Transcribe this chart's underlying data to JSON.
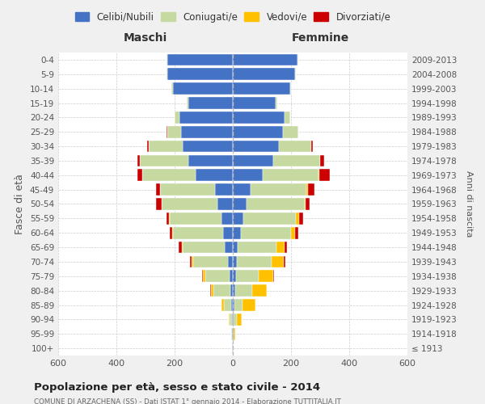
{
  "age_groups": [
    "100+",
    "95-99",
    "90-94",
    "85-89",
    "80-84",
    "75-79",
    "70-74",
    "65-69",
    "60-64",
    "55-59",
    "50-54",
    "45-49",
    "40-44",
    "35-39",
    "30-34",
    "25-29",
    "20-24",
    "15-19",
    "10-14",
    "5-9",
    "0-4"
  ],
  "birth_years": [
    "≤ 1913",
    "1914-1918",
    "1919-1923",
    "1924-1928",
    "1929-1933",
    "1934-1938",
    "1939-1943",
    "1944-1948",
    "1949-1953",
    "1954-1958",
    "1959-1963",
    "1964-1968",
    "1969-1973",
    "1974-1978",
    "1979-1983",
    "1984-1988",
    "1989-1993",
    "1994-1998",
    "1999-2003",
    "2004-2008",
    "2009-2013"
  ],
  "maschi": {
    "celibi": [
      2,
      2,
      3,
      5,
      8,
      12,
      18,
      28,
      33,
      40,
      52,
      62,
      128,
      152,
      172,
      178,
      182,
      152,
      205,
      225,
      225
    ],
    "coniugati": [
      2,
      3,
      8,
      25,
      58,
      83,
      118,
      143,
      172,
      178,
      192,
      188,
      183,
      168,
      118,
      48,
      18,
      5,
      5,
      3,
      2
    ],
    "vedovi": [
      0,
      1,
      3,
      8,
      10,
      8,
      5,
      3,
      2,
      2,
      1,
      0,
      0,
      0,
      0,
      0,
      0,
      0,
      0,
      0,
      0
    ],
    "divorziati": [
      0,
      0,
      0,
      0,
      2,
      3,
      6,
      12,
      10,
      8,
      18,
      14,
      18,
      8,
      4,
      2,
      1,
      0,
      0,
      0,
      0
    ]
  },
  "femmine": {
    "nubili": [
      1,
      2,
      3,
      5,
      8,
      10,
      14,
      18,
      27,
      36,
      48,
      62,
      102,
      138,
      158,
      172,
      178,
      148,
      198,
      215,
      222
    ],
    "coniugate": [
      1,
      2,
      10,
      28,
      58,
      78,
      118,
      133,
      172,
      182,
      198,
      192,
      192,
      162,
      112,
      52,
      18,
      5,
      3,
      2,
      2
    ],
    "vedove": [
      1,
      5,
      18,
      44,
      50,
      52,
      44,
      28,
      14,
      9,
      5,
      3,
      2,
      1,
      0,
      0,
      0,
      0,
      0,
      0,
      0
    ],
    "divorziate": [
      0,
      0,
      0,
      0,
      2,
      3,
      5,
      8,
      12,
      14,
      14,
      24,
      38,
      12,
      5,
      2,
      1,
      0,
      0,
      0,
      0
    ]
  },
  "colors": {
    "celibi": "#4472c4",
    "coniugati": "#c5d9a0",
    "vedovi": "#ffc000",
    "divorziati": "#cc0000"
  },
  "xlim": 600,
  "title": "Popolazione per età, sesso e stato civile - 2014",
  "subtitle": "COMUNE DI ARZACHENA (SS) - Dati ISTAT 1° gennaio 2014 - Elaborazione TUTTITALIA.IT",
  "ylabel_left": "Fasce di età",
  "ylabel_right": "Anni di nascita",
  "legend_labels": [
    "Celibi/Nubili",
    "Coniugati/e",
    "Vedovi/e",
    "Divorziati/e"
  ],
  "maschi_label": "Maschi",
  "femmine_label": "Femmine",
  "bg_color": "#f0f0f0",
  "plot_bg_color": "#ffffff"
}
